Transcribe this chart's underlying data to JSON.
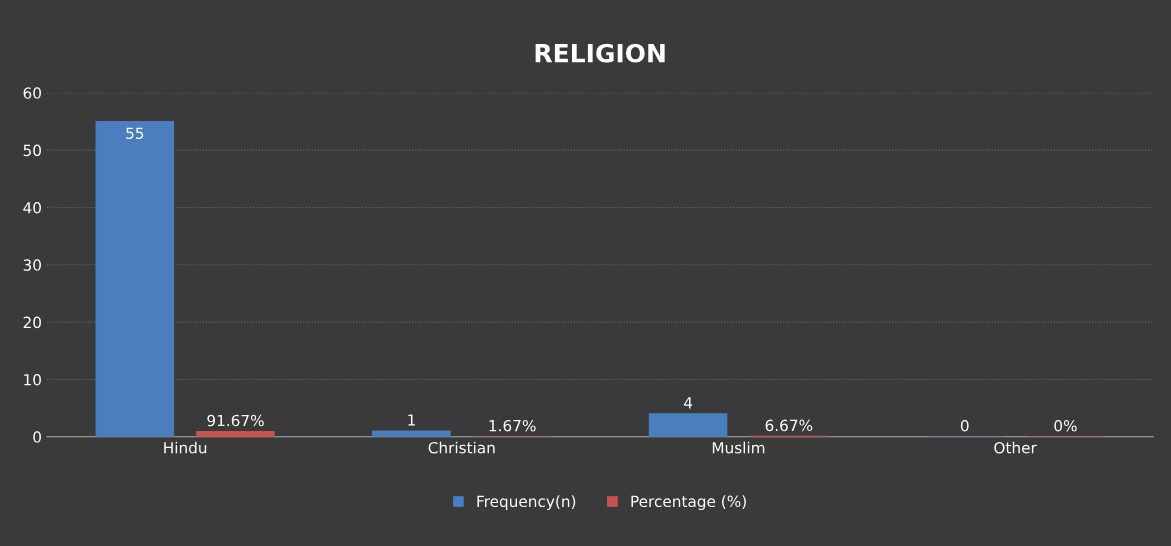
{
  "chart_data": {
    "type": "bar",
    "title": "RELIGION",
    "categories": [
      "Hindu",
      "Christian",
      "Muslim",
      "Other"
    ],
    "series": [
      {
        "name": "Frequency(n)",
        "color": "#4a7ebf",
        "values": [
          55,
          1,
          4,
          0
        ],
        "value_labels": [
          "55",
          "1",
          "4",
          "0"
        ]
      },
      {
        "name": "Percentage (%)",
        "color": "#c9524f",
        "values": [
          0.9167,
          0.0167,
          0.0667,
          0
        ],
        "value_labels": [
          "91.67%",
          "1.67%",
          "6.67%",
          "0%"
        ]
      }
    ],
    "ylim": [
      0,
      60
    ],
    "yticks": [
      0,
      10,
      20,
      30,
      40,
      50,
      60
    ],
    "grid": "y",
    "legend": "bottom"
  }
}
